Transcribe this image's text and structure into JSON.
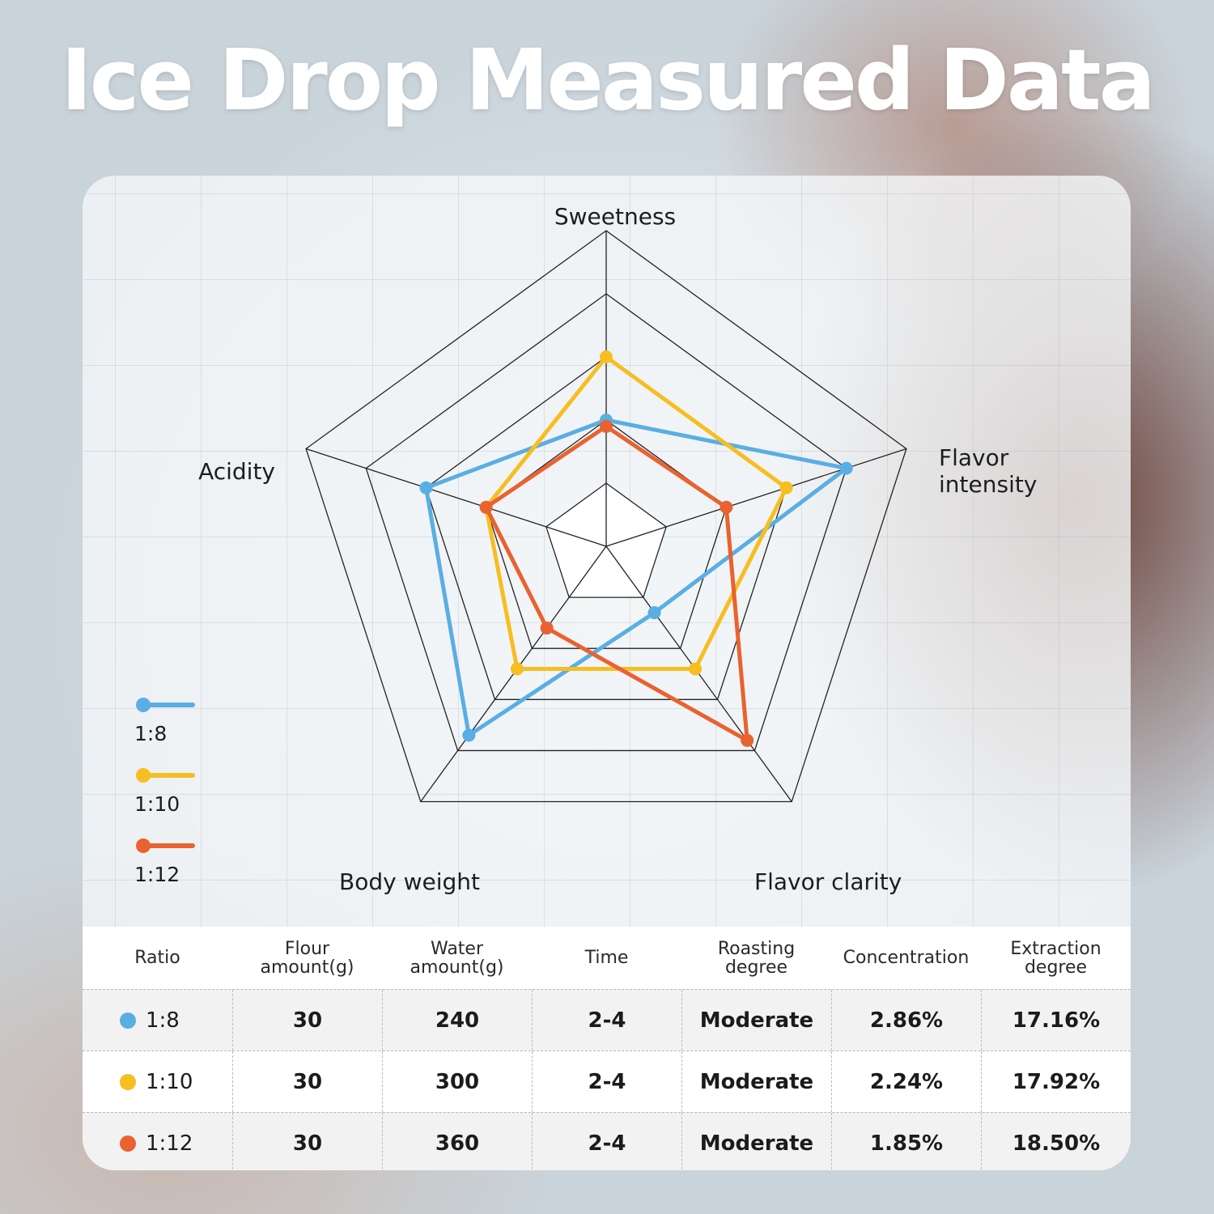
{
  "title": "Ice Drop Measured Data",
  "chart_data": {
    "type": "radar",
    "axes": [
      "Sweetness",
      "Flavor intensity",
      "Flavor clarity",
      "Body weight",
      "Acidity"
    ],
    "axis_label_lines": [
      [
        "Sweetness"
      ],
      [
        "Flavor",
        "intensity"
      ],
      [
        "Flavor clarity"
      ],
      [
        "Body weight"
      ],
      [
        "Acidity"
      ]
    ],
    "range": [
      0,
      5
    ],
    "rings": 5,
    "series": [
      {
        "name": "1:8",
        "color": "#5aaee3",
        "values": [
          2.0,
          4.0,
          1.3,
          3.7,
          3.0
        ]
      },
      {
        "name": "1:10",
        "color": "#f6be21",
        "values": [
          3.0,
          3.0,
          2.4,
          2.4,
          2.0
        ]
      },
      {
        "name": "1:12",
        "color": "#e9622f",
        "values": [
          1.9,
          2.0,
          3.8,
          1.6,
          2.0
        ]
      }
    ],
    "legend_position": "left"
  },
  "table": {
    "headers": [
      [
        "Ratio"
      ],
      [
        "Flour",
        "amount(g)"
      ],
      [
        "Water",
        "amount(g)"
      ],
      [
        "Time"
      ],
      [
        "Roasting",
        "degree"
      ],
      [
        "Concentration"
      ],
      [
        "Extraction",
        "degree"
      ]
    ],
    "rows": [
      {
        "ratio": "1:8",
        "color": "#5aaee3",
        "flour": "30",
        "water": "240",
        "time": "2-4",
        "roasting": "Moderate",
        "concentration": "2.86%",
        "extraction": "17.16%"
      },
      {
        "ratio": "1:10",
        "color": "#f6be21",
        "flour": "30",
        "water": "300",
        "time": "2-4",
        "roasting": "Moderate",
        "concentration": "2.24%",
        "extraction": "17.92%"
      },
      {
        "ratio": "1:12",
        "color": "#e9622f",
        "flour": "30",
        "water": "360",
        "time": "2-4",
        "roasting": "Moderate",
        "concentration": "1.85%",
        "extraction": "18.50%"
      }
    ]
  }
}
